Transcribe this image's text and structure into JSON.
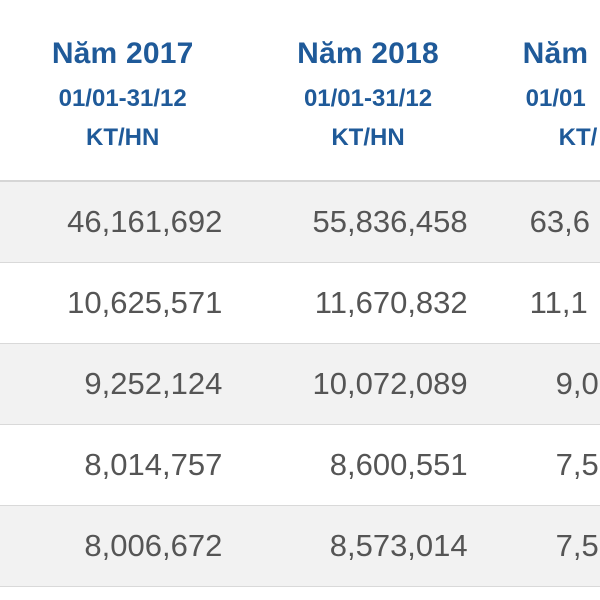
{
  "table": {
    "columns": [
      {
        "year": "Năm 2017",
        "period": "01/01-31/12",
        "unit": "KT/HN"
      },
      {
        "year": "Năm 2018",
        "period": "01/01-31/12",
        "unit": "KT/HN"
      },
      {
        "year": "Năm",
        "period": "01/01",
        "unit": "KT/"
      }
    ],
    "rows": [
      [
        "46,161,692",
        "55,836,458",
        "63,6"
      ],
      [
        "10,625,571",
        "11,670,832",
        "11,1"
      ],
      [
        "9,252,124",
        "10,072,089",
        "9,0"
      ],
      [
        "8,014,757",
        "8,600,551",
        "7,5"
      ],
      [
        "8,006,672",
        "8,573,014",
        "7,5"
      ]
    ]
  }
}
